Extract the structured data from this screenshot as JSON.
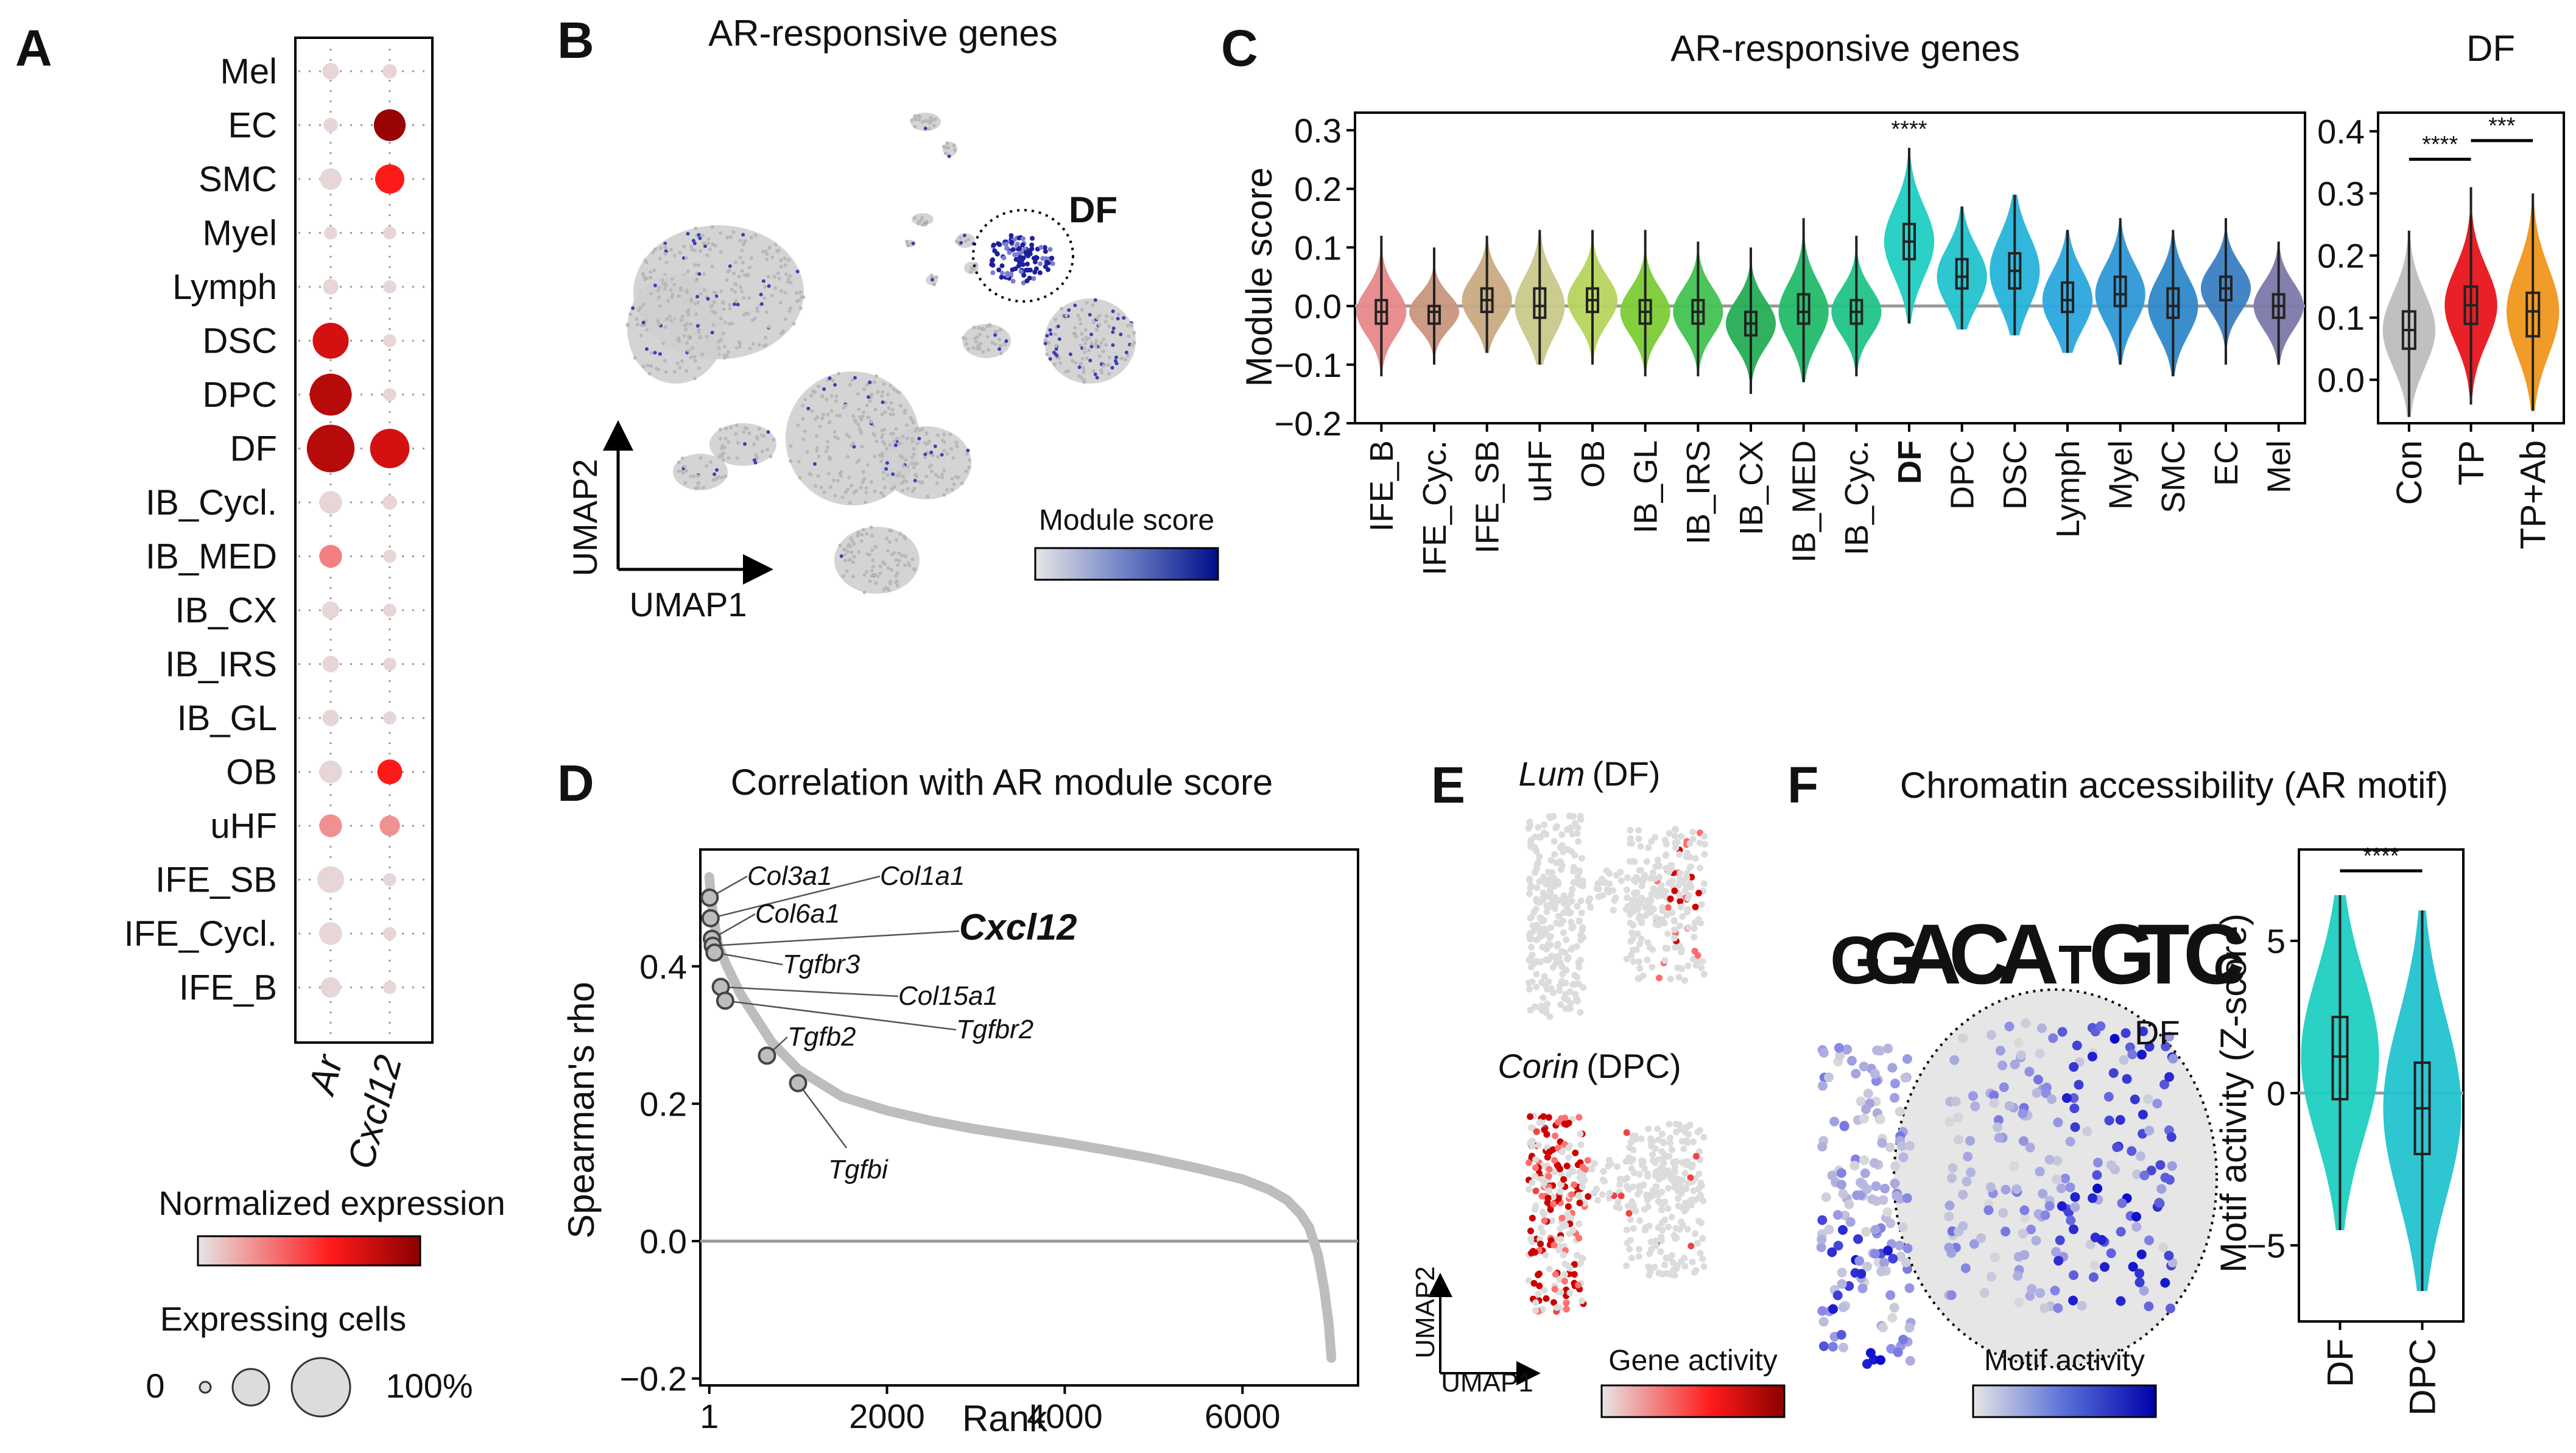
{
  "panels": {
    "A": "A",
    "B": "B",
    "C": "C",
    "D": "D",
    "E": "E",
    "F": "F"
  },
  "chart_data": [
    {
      "panel": "A",
      "type": "dotplot",
      "rows": [
        "Mel",
        "EC",
        "SMC",
        "Myel",
        "Lymph",
        "DSC",
        "DPC",
        "DF",
        "IB_Cycl.",
        "IB_MED",
        "IB_CX",
        "IB_IRS",
        "IB_GL",
        "OB",
        "uHF",
        "IFE_SB",
        "IFE_Cycl.",
        "IFE_B"
      ],
      "columns": [
        "Ar",
        "Cxcl12"
      ],
      "pct": [
        [
          5,
          3
        ],
        [
          3,
          35
        ],
        [
          12,
          28
        ],
        [
          2,
          2
        ],
        [
          4,
          2
        ],
        [
          48,
          2
        ],
        [
          70,
          2
        ],
        [
          95,
          60
        ],
        [
          14,
          3
        ],
        [
          14,
          2
        ],
        [
          6,
          2
        ],
        [
          5,
          2
        ],
        [
          5,
          2
        ],
        [
          14,
          18
        ],
        [
          14,
          10
        ],
        [
          22,
          2
        ],
        [
          14,
          2
        ],
        [
          10,
          2
        ]
      ],
      "expr": [
        [
          0.05,
          0.05
        ],
        [
          0.05,
          0.95
        ],
        [
          0.05,
          0.6
        ],
        [
          0.05,
          0.05
        ],
        [
          0.05,
          0.05
        ],
        [
          0.75,
          0.05
        ],
        [
          0.85,
          0.05
        ],
        [
          0.85,
          0.75
        ],
        [
          0.05,
          0.05
        ],
        [
          0.3,
          0.05
        ],
        [
          0.05,
          0.05
        ],
        [
          0.05,
          0.05
        ],
        [
          0.05,
          0.05
        ],
        [
          0.05,
          0.6
        ],
        [
          0.25,
          0.25
        ],
        [
          0.05,
          0.05
        ],
        [
          0.05,
          0.05
        ],
        [
          0.05,
          0.05
        ]
      ],
      "legend_color_title": "Normalized expression",
      "legend_size_title": "Expressing cells",
      "legend_size_min": "0",
      "legend_size_max": "100%"
    },
    {
      "panel": "B",
      "type": "scatter",
      "title": "AR-responsive genes",
      "xlabel": "UMAP1",
      "ylabel": "UMAP2",
      "annotation": "DF",
      "legend_title": "Module score"
    },
    {
      "panel": "C",
      "type": "violin",
      "title": "AR-responsive genes",
      "ylabel": "Module score",
      "ylim": [
        -0.2,
        0.33
      ],
      "yticks": [
        0.3,
        0.2,
        0.1,
        0.0,
        -0.1,
        -0.2
      ],
      "ytick_labels": [
        "0.3",
        "0.2",
        "0.1",
        "0.0",
        "−0.1",
        "−0.2"
      ],
      "categories": [
        "IFE_B",
        "IFE_Cyc.",
        "IFE_SB",
        "uHF",
        "OB",
        "IB_GL",
        "IB_IRS",
        "IB_CX",
        "IB_MED",
        "IB_Cyc.",
        "DF",
        "DPC",
        "DSC",
        "Lymph",
        "Myel",
        "SMC",
        "EC",
        "Mel"
      ],
      "highlight": "DF",
      "highlight_color": "#ee1c1c",
      "colors": [
        "#e8888a",
        "#c8967e",
        "#c9ab82",
        "#c9c88a",
        "#b6d45e",
        "#7ccc35",
        "#42c252",
        "#26ad55",
        "#23bb6a",
        "#21c488",
        "#1fcfc1",
        "#22c3cf",
        "#27b3da",
        "#2aa6de",
        "#2e98d6",
        "#2f88c8",
        "#3a80c2",
        "#7c79aa"
      ],
      "stats": [
        {
          "median": -0.01,
          "q1": -0.03,
          "q3": 0.01,
          "wmin": -0.12,
          "wmax": 0.12
        },
        {
          "median": -0.01,
          "q1": -0.03,
          "q3": 0.0,
          "wmin": -0.1,
          "wmax": 0.1
        },
        {
          "median": 0.01,
          "q1": -0.01,
          "q3": 0.03,
          "wmin": -0.08,
          "wmax": 0.12
        },
        {
          "median": 0.0,
          "q1": -0.02,
          "q3": 0.03,
          "wmin": -0.1,
          "wmax": 0.13
        },
        {
          "median": 0.01,
          "q1": -0.01,
          "q3": 0.03,
          "wmin": -0.1,
          "wmax": 0.13
        },
        {
          "median": -0.01,
          "q1": -0.03,
          "q3": 0.01,
          "wmin": -0.12,
          "wmax": 0.13
        },
        {
          "median": -0.01,
          "q1": -0.03,
          "q3": 0.01,
          "wmin": -0.12,
          "wmax": 0.11
        },
        {
          "median": -0.03,
          "q1": -0.05,
          "q3": -0.01,
          "wmin": -0.15,
          "wmax": 0.1
        },
        {
          "median": -0.01,
          "q1": -0.03,
          "q3": 0.02,
          "wmin": -0.13,
          "wmax": 0.15
        },
        {
          "median": -0.01,
          "q1": -0.03,
          "q3": 0.01,
          "wmin": -0.12,
          "wmax": 0.12
        },
        {
          "median": 0.11,
          "q1": 0.08,
          "q3": 0.14,
          "wmin": -0.03,
          "wmax": 0.27
        },
        {
          "median": 0.05,
          "q1": 0.03,
          "q3": 0.08,
          "wmin": -0.04,
          "wmax": 0.17
        },
        {
          "median": 0.06,
          "q1": 0.03,
          "q3": 0.09,
          "wmin": -0.05,
          "wmax": 0.19
        },
        {
          "median": 0.01,
          "q1": -0.01,
          "q3": 0.04,
          "wmin": -0.08,
          "wmax": 0.13
        },
        {
          "median": 0.02,
          "q1": 0.0,
          "q3": 0.05,
          "wmin": -0.1,
          "wmax": 0.15
        },
        {
          "median": 0.0,
          "q1": -0.02,
          "q3": 0.03,
          "wmin": -0.12,
          "wmax": 0.13
        },
        {
          "median": 0.03,
          "q1": 0.01,
          "q3": 0.05,
          "wmin": -0.1,
          "wmax": 0.15
        },
        {
          "median": 0.0,
          "q1": -0.02,
          "q3": 0.02,
          "wmin": -0.1,
          "wmax": 0.11
        }
      ],
      "significance": {
        "category": "DF",
        "label": "****"
      }
    },
    {
      "panel": "C2",
      "type": "violin",
      "title": "DF",
      "ylim": [
        -0.07,
        0.43
      ],
      "yticks": [
        0.4,
        0.3,
        0.2,
        0.1,
        0.0
      ],
      "ytick_labels": [
        "0.4",
        "0.3",
        "0.2",
        "0.1",
        "0.0"
      ],
      "categories": [
        "Con",
        "TP",
        "TP+Ab"
      ],
      "colors": [
        "#bdbdbd",
        "#e8141b",
        "#f0961e"
      ],
      "stats": [
        {
          "median": 0.08,
          "q1": 0.05,
          "q3": 0.11,
          "wmin": -0.06,
          "wmax": 0.24
        },
        {
          "median": 0.12,
          "q1": 0.09,
          "q3": 0.15,
          "wmin": -0.04,
          "wmax": 0.31
        },
        {
          "median": 0.11,
          "q1": 0.07,
          "q3": 0.14,
          "wmin": -0.05,
          "wmax": 0.3
        }
      ],
      "comparisons": [
        {
          "from": "Con",
          "to": "TP",
          "label": "****"
        },
        {
          "from": "TP",
          "to": "TP+Ab",
          "label": "***"
        }
      ]
    },
    {
      "panel": "D",
      "type": "scatter",
      "title": "Correlation with AR module score",
      "xlabel": "Rank",
      "ylabel": "Spearman's rho",
      "xlim": [
        -100,
        7300
      ],
      "ylim": [
        -0.21,
        0.57
      ],
      "xticks": [
        1,
        2000,
        4000,
        6000
      ],
      "xtick_labels": [
        "1",
        "2000",
        "4000",
        "6000"
      ],
      "yticks": [
        0.4,
        0.2,
        0.0,
        -0.2
      ],
      "ytick_labels": [
        "0.4",
        "0.2",
        "0.0",
        "−0.2"
      ],
      "curve": [
        [
          1,
          0.53
        ],
        [
          20,
          0.5
        ],
        [
          50,
          0.47
        ],
        [
          100,
          0.43
        ],
        [
          200,
          0.4
        ],
        [
          350,
          0.36
        ],
        [
          500,
          0.33
        ],
        [
          700,
          0.29
        ],
        [
          1000,
          0.25
        ],
        [
          1500,
          0.21
        ],
        [
          2000,
          0.19
        ],
        [
          2500,
          0.175
        ],
        [
          3000,
          0.163
        ],
        [
          3500,
          0.153
        ],
        [
          4000,
          0.143
        ],
        [
          4500,
          0.132
        ],
        [
          5000,
          0.12
        ],
        [
          5500,
          0.106
        ],
        [
          6000,
          0.09
        ],
        [
          6300,
          0.075
        ],
        [
          6500,
          0.06
        ],
        [
          6650,
          0.04
        ],
        [
          6750,
          0.02
        ],
        [
          6850,
          -0.02
        ],
        [
          6920,
          -0.07
        ],
        [
          6970,
          -0.12
        ],
        [
          7000,
          -0.17
        ]
      ],
      "labeled_genes": [
        {
          "gene": "Col3a1",
          "rank": 5,
          "rho": 0.5
        },
        {
          "gene": "Col1a1",
          "rank": 15,
          "rho": 0.47
        },
        {
          "gene": "Col6a1",
          "rank": 30,
          "rho": 0.44
        },
        {
          "gene": "Cxcl12",
          "rank": 40,
          "rho": 0.43,
          "highlight": true
        },
        {
          "gene": "Tgfbr3",
          "rank": 60,
          "rho": 0.42
        },
        {
          "gene": "Col15a1",
          "rank": 130,
          "rho": 0.37
        },
        {
          "gene": "Tgfbr2",
          "rank": 180,
          "rho": 0.35
        },
        {
          "gene": "Tgfb2",
          "rank": 650,
          "rho": 0.27
        },
        {
          "gene": "Tgfbi",
          "rank": 1000,
          "rho": 0.23
        }
      ]
    },
    {
      "panel": "E",
      "type": "scatter",
      "plots": [
        {
          "gene": "Lum",
          "celltype": "(DF)"
        },
        {
          "gene": "Corin",
          "celltype": "(DPC)"
        }
      ],
      "xlabel": "UMAP1",
      "ylabel": "UMAP2",
      "legend_title": "Gene activity"
    },
    {
      "panel": "F",
      "type": "scatter",
      "title": "Chromatin accessibility (AR motif)",
      "annotation": "DF",
      "legend_title": "Motif activity",
      "motif_letters": [
        "G",
        "G",
        "A",
        "C",
        "A",
        "T",
        "G",
        "T",
        "C",
        "C"
      ]
    },
    {
      "panel": "F2",
      "type": "violin",
      "ylabel": "Motif activity (Z-score)",
      "ylim": [
        -7.5,
        8
      ],
      "yticks": [
        5,
        0,
        -5
      ],
      "ytick_labels": [
        "5",
        "0",
        "−5"
      ],
      "categories": [
        "DF",
        "DPC"
      ],
      "colors": [
        "#1fcfc1",
        "#22c3cf"
      ],
      "stats": [
        {
          "median": 1.2,
          "q1": -0.2,
          "q3": 2.5,
          "wmin": -4.5,
          "wmax": 6.5
        },
        {
          "median": -0.5,
          "q1": -2.0,
          "q3": 1.0,
          "wmin": -6.5,
          "wmax": 6.0
        }
      ],
      "comparisons": [
        {
          "from": "DF",
          "to": "DPC",
          "label": "****"
        }
      ]
    }
  ]
}
